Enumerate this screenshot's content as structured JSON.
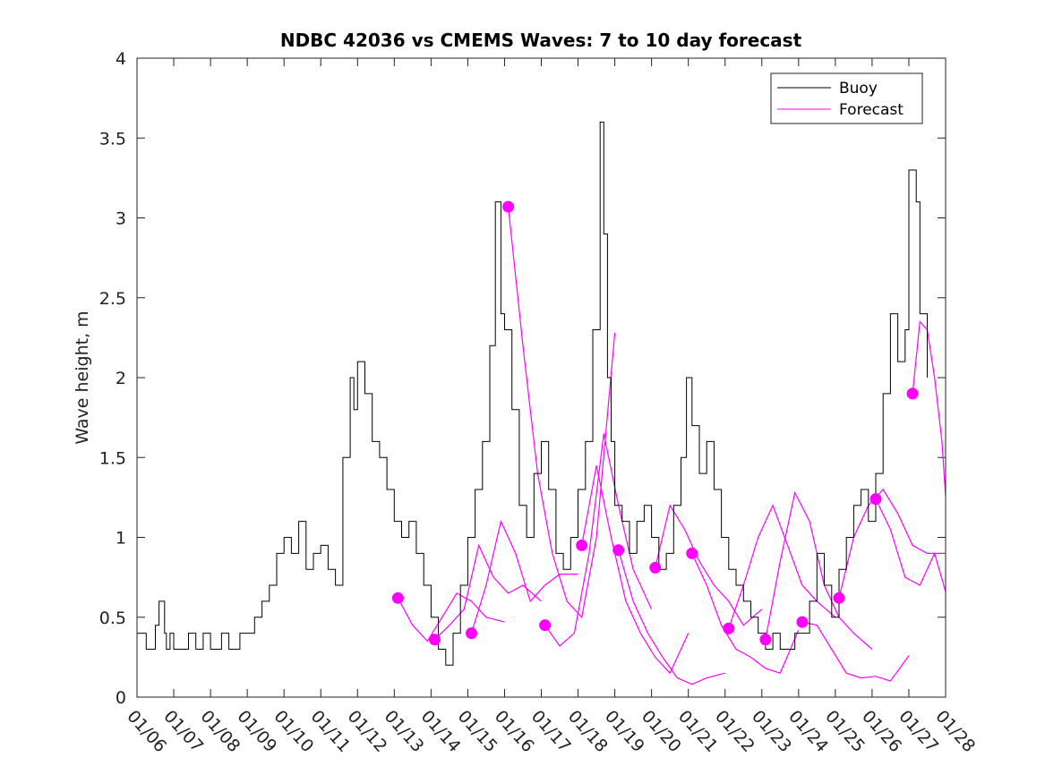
{
  "chart_data": {
    "type": "line",
    "title": "NDBC 42036 vs CMEMS Waves: 7 to 10 day forecast",
    "xlabel": "",
    "ylabel": "Wave height, m",
    "xlim": [
      6,
      28
    ],
    "ylim": [
      0,
      4
    ],
    "x_ticks": [
      6,
      7,
      8,
      9,
      10,
      11,
      12,
      13,
      14,
      15,
      16,
      17,
      18,
      19,
      20,
      21,
      22,
      23,
      24,
      25,
      26,
      27,
      28
    ],
    "x_tick_labels": [
      "01/06",
      "01/07",
      "01/08",
      "01/09",
      "01/10",
      "01/11",
      "01/12",
      "01/13",
      "01/14",
      "01/15",
      "01/16",
      "01/17",
      "01/18",
      "01/19",
      "01/20",
      "01/21",
      "01/22",
      "01/23",
      "01/24",
      "01/25",
      "01/26",
      "01/27",
      "01/28"
    ],
    "y_ticks": [
      0,
      0.5,
      1,
      1.5,
      2,
      2.5,
      3,
      3.5,
      4
    ],
    "y_tick_labels": [
      "0",
      "0.5",
      "1",
      "1.5",
      "2",
      "2.5",
      "3",
      "3.5",
      "4"
    ],
    "grid": false,
    "legend": {
      "position": "top-right",
      "entries": [
        "Buoy",
        "Forecast"
      ]
    },
    "colors": {
      "buoy": "#000000",
      "forecast": "#ff00ff"
    },
    "buoy": {
      "name": "Buoy",
      "x": [
        6.0,
        6.25,
        6.5,
        6.6,
        6.75,
        6.8,
        6.9,
        7.0,
        7.2,
        7.4,
        7.6,
        7.8,
        8.0,
        8.3,
        8.5,
        8.8,
        9.0,
        9.2,
        9.4,
        9.6,
        9.8,
        10.0,
        10.2,
        10.4,
        10.6,
        10.8,
        11.0,
        11.2,
        11.4,
        11.6,
        11.8,
        11.9,
        12.0,
        12.2,
        12.4,
        12.6,
        12.8,
        13.0,
        13.2,
        13.4,
        13.6,
        13.8,
        14.0,
        14.2,
        14.4,
        14.6,
        14.8,
        15.0,
        15.2,
        15.4,
        15.6,
        15.75,
        15.9,
        16.0,
        16.2,
        16.4,
        16.6,
        16.8,
        17.0,
        17.2,
        17.4,
        17.6,
        17.8,
        18.0,
        18.2,
        18.4,
        18.6,
        18.7,
        18.8,
        18.9,
        19.0,
        19.2,
        19.4,
        19.6,
        19.8,
        20.0,
        20.2,
        20.4,
        20.6,
        20.8,
        20.95,
        21.1,
        21.3,
        21.5,
        21.7,
        21.9,
        22.1,
        22.3,
        22.5,
        22.7,
        22.9,
        23.1,
        23.3,
        23.5,
        23.7,
        23.9,
        24.1,
        24.3,
        24.5,
        24.7,
        24.9,
        25.1,
        25.3,
        25.5,
        25.7,
        25.9,
        26.1,
        26.3,
        26.5,
        26.7,
        26.9,
        27.0,
        27.2,
        27.3,
        27.5
      ],
      "y": [
        0.4,
        0.3,
        0.45,
        0.6,
        0.4,
        0.3,
        0.4,
        0.3,
        0.3,
        0.4,
        0.3,
        0.4,
        0.3,
        0.4,
        0.3,
        0.4,
        0.4,
        0.5,
        0.6,
        0.7,
        0.9,
        1.0,
        0.9,
        1.1,
        0.8,
        0.9,
        0.95,
        0.8,
        0.7,
        1.5,
        2.0,
        1.8,
        2.1,
        1.9,
        1.6,
        1.5,
        1.3,
        1.1,
        1.0,
        1.1,
        0.9,
        0.7,
        0.5,
        0.3,
        0.2,
        0.4,
        0.7,
        1.0,
        1.3,
        1.6,
        2.2,
        3.1,
        2.4,
        2.3,
        1.8,
        1.2,
        1.0,
        1.4,
        1.6,
        1.3,
        0.9,
        0.8,
        1.0,
        1.3,
        1.6,
        2.3,
        3.6,
        2.9,
        2.0,
        1.6,
        1.2,
        1.1,
        0.9,
        1.1,
        1.2,
        1.0,
        0.8,
        0.9,
        1.2,
        1.5,
        2.0,
        1.7,
        1.4,
        1.6,
        1.3,
        1.0,
        0.8,
        0.7,
        0.6,
        0.5,
        0.4,
        0.3,
        0.4,
        0.3,
        0.3,
        0.4,
        0.4,
        0.6,
        0.9,
        0.7,
        0.5,
        0.8,
        1.0,
        1.2,
        1.3,
        1.1,
        1.4,
        1.9,
        2.4,
        2.1,
        2.3,
        3.3,
        3.1,
        2.4,
        2.0
      ]
    },
    "forecast_start_points": {
      "x": [
        13.1,
        14.1,
        15.1,
        16.1,
        17.1,
        18.1,
        19.1,
        20.1,
        21.1,
        22.1,
        23.1,
        24.1,
        25.1,
        26.1,
        27.1
      ],
      "y": [
        0.62,
        0.36,
        0.4,
        3.07,
        0.45,
        0.95,
        0.92,
        0.81,
        0.9,
        0.43,
        0.36,
        0.47,
        0.62,
        1.24,
        1.9
      ]
    },
    "forecasts": [
      {
        "x": [
          13.1,
          13.5,
          13.9,
          14.3,
          14.7,
          15.1,
          15.5,
          16.0
        ],
        "y": [
          0.62,
          0.45,
          0.35,
          0.5,
          0.65,
          0.6,
          0.5,
          0.47
        ]
      },
      {
        "x": [
          14.1,
          14.5,
          14.9,
          15.3,
          15.7,
          16.1,
          16.5,
          17.0
        ],
        "y": [
          0.36,
          0.45,
          0.55,
          0.95,
          0.75,
          0.65,
          0.7,
          0.6
        ]
      },
      {
        "x": [
          15.1,
          15.5,
          15.9,
          16.3,
          16.7,
          17.1,
          17.5,
          18.0
        ],
        "y": [
          0.4,
          0.7,
          1.1,
          0.9,
          0.6,
          0.7,
          0.77,
          0.77
        ]
      },
      {
        "x": [
          16.1,
          16.5,
          16.9,
          17.3,
          17.7,
          18.1,
          18.5,
          19.0
        ],
        "y": [
          3.07,
          2.2,
          1.4,
          0.9,
          0.6,
          0.5,
          1.0,
          2.28
        ]
      },
      {
        "x": [
          17.1,
          17.5,
          17.9,
          18.3,
          18.7,
          19.1,
          19.5,
          20.0
        ],
        "y": [
          0.45,
          0.32,
          0.4,
          0.9,
          1.65,
          1.2,
          0.8,
          0.55
        ]
      },
      {
        "x": [
          18.1,
          18.5,
          18.9,
          19.3,
          19.7,
          20.1,
          20.5,
          21.0
        ],
        "y": [
          0.95,
          1.45,
          1.0,
          0.6,
          0.4,
          0.25,
          0.15,
          0.4
        ]
      },
      {
        "x": [
          19.1,
          19.5,
          19.9,
          20.3,
          20.7,
          21.1,
          21.5,
          22.0
        ],
        "y": [
          0.92,
          0.6,
          0.4,
          0.25,
          0.12,
          0.08,
          0.12,
          0.15
        ]
      },
      {
        "x": [
          20.1,
          20.5,
          20.9,
          21.3,
          21.7,
          22.1,
          22.5,
          23.0
        ],
        "y": [
          0.81,
          1.2,
          1.05,
          0.85,
          0.7,
          0.6,
          0.45,
          0.55
        ]
      },
      {
        "x": [
          21.1,
          21.5,
          21.9,
          22.3,
          22.7,
          23.1,
          23.5,
          24.0
        ],
        "y": [
          0.9,
          0.7,
          0.45,
          0.3,
          0.25,
          0.18,
          0.15,
          0.42
        ]
      },
      {
        "x": [
          22.1,
          22.5,
          22.9,
          23.3,
          23.7,
          24.1,
          24.5,
          25.0
        ],
        "y": [
          0.43,
          0.7,
          1.0,
          1.2,
          0.95,
          0.7,
          0.6,
          0.5
        ]
      },
      {
        "x": [
          23.1,
          23.5,
          23.9,
          24.3,
          24.7,
          25.1,
          25.5,
          26.0
        ],
        "y": [
          0.36,
          0.85,
          1.28,
          1.1,
          0.7,
          0.5,
          0.4,
          0.3
        ]
      },
      {
        "x": [
          24.1,
          24.5,
          24.9,
          25.3,
          25.7,
          26.1,
          26.5,
          27.0
        ],
        "y": [
          0.47,
          0.45,
          0.3,
          0.15,
          0.12,
          0.13,
          0.1,
          0.26
        ]
      },
      {
        "x": [
          25.1,
          25.5,
          25.9,
          26.3,
          26.7,
          27.1,
          27.5,
          28.0
        ],
        "y": [
          0.62,
          1.0,
          1.2,
          1.3,
          1.15,
          0.95,
          0.9,
          0.9
        ]
      },
      {
        "x": [
          26.1,
          26.5,
          26.9,
          27.3,
          27.7,
          28.0
        ],
        "y": [
          1.24,
          1.05,
          0.75,
          0.7,
          0.9,
          0.66
        ]
      },
      {
        "x": [
          27.1,
          27.3,
          27.5,
          27.7,
          27.9,
          28.0
        ],
        "y": [
          1.9,
          2.35,
          2.3,
          2.0,
          1.6,
          1.26
        ]
      }
    ]
  }
}
